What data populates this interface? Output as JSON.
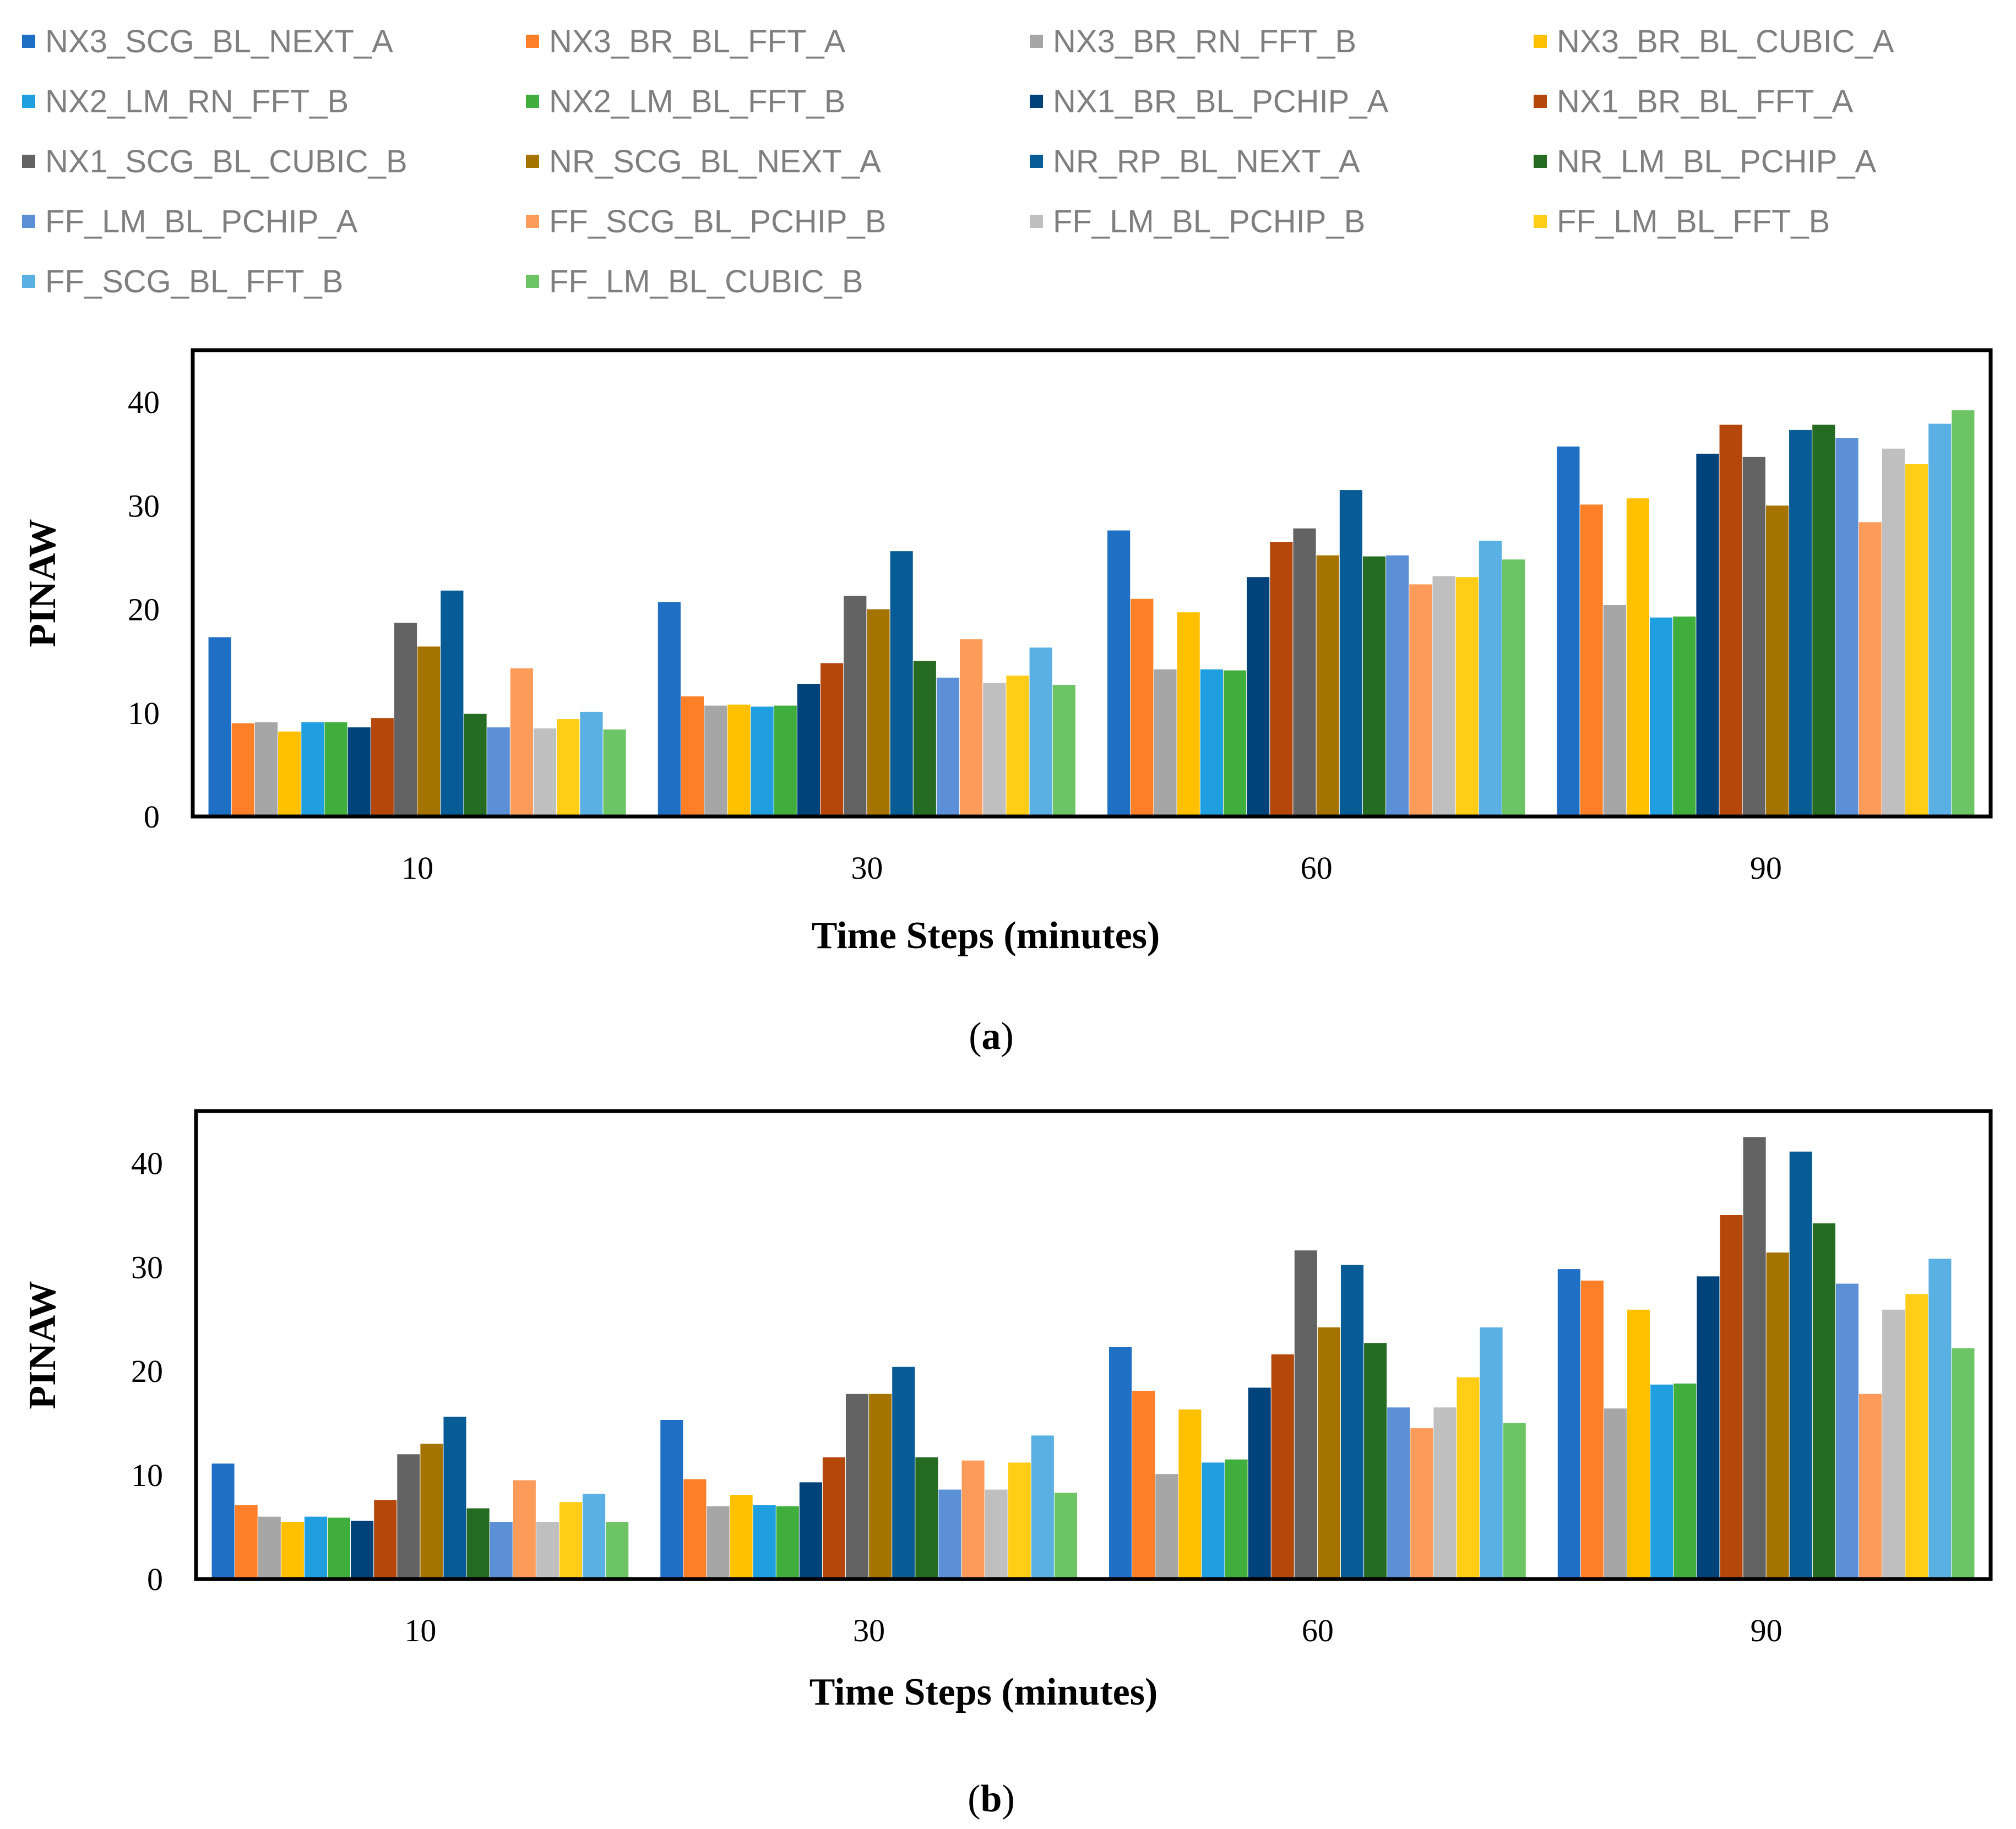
{
  "chart_data": [
    {
      "type": "bar",
      "panel": "a",
      "caption_open": "(",
      "caption": "a",
      "caption_close": ")",
      "xlabel": "Time Steps (minutes)",
      "ylabel": "PINAW",
      "ylim": [
        0,
        45
      ],
      "yticks": [
        "0",
        "10",
        "20",
        "30",
        "40"
      ],
      "categories": [
        "10",
        "30",
        "60",
        "90"
      ],
      "series": [
        {
          "name": "NX3_SCG_BL_NEXT_A",
          "color": "#1f6fc5",
          "values": [
            17.3,
            20.7,
            27.6,
            35.7
          ]
        },
        {
          "name": "NX3_BR_BL_FFT_A",
          "color": "#fd7f28",
          "values": [
            9.0,
            11.6,
            21.0,
            30.1
          ]
        },
        {
          "name": "NX3_BR_RN_FFT_B",
          "color": "#a6a6a6",
          "values": [
            9.1,
            10.7,
            14.2,
            20.4
          ]
        },
        {
          "name": "NX3_BR_BL_CUBIC_A",
          "color": "#ffc000",
          "values": [
            8.2,
            10.8,
            19.7,
            30.7
          ]
        },
        {
          "name": "NX2_LM_RN_FFT_B",
          "color": "#1f9ee0",
          "values": [
            9.1,
            10.6,
            14.2,
            19.2
          ]
        },
        {
          "name": "NX2_LM_BL_FFT_B",
          "color": "#3fae3c",
          "values": [
            9.1,
            10.7,
            14.1,
            19.3
          ]
        },
        {
          "name": "NX1_BR_BL_PCHIP_A",
          "color": "#00427a",
          "values": [
            8.6,
            12.8,
            23.1,
            35.0
          ]
        },
        {
          "name": "NX1_BR_BL_FFT_A",
          "color": "#b5470b",
          "values": [
            9.5,
            14.8,
            26.5,
            37.8
          ]
        },
        {
          "name": "NX1_SCG_BL_CUBIC_B",
          "color": "#636363",
          "values": [
            18.7,
            21.3,
            27.8,
            34.7
          ]
        },
        {
          "name": "NR_SCG_BL_NEXT_A",
          "color": "#a57300",
          "values": [
            16.4,
            20.0,
            25.2,
            30.0
          ]
        },
        {
          "name": "NR_RP_BL_NEXT_A",
          "color": "#075c95",
          "values": [
            21.8,
            25.6,
            31.5,
            37.3
          ]
        },
        {
          "name": "NR_LM_BL_PCHIP_A",
          "color": "#266b22",
          "values": [
            9.9,
            15.0,
            25.1,
            37.8
          ]
        },
        {
          "name": "FF_LM_BL_PCHIP_A",
          "color": "#5b8fd6",
          "values": [
            8.6,
            13.4,
            25.2,
            36.5
          ]
        },
        {
          "name": "FF_SCG_BL_PCHIP_B",
          "color": "#fd9b5a",
          "values": [
            14.3,
            17.1,
            22.4,
            28.4
          ]
        },
        {
          "name": "FF_LM_BL_PCHIP_B",
          "color": "#bfbfbf",
          "values": [
            8.5,
            12.9,
            23.2,
            35.5
          ]
        },
        {
          "name": "FF_LM_BL_FFT_B",
          "color": "#ffcd16",
          "values": [
            9.4,
            13.6,
            23.1,
            34.0
          ]
        },
        {
          "name": "FF_SCG_BL_FFT_B",
          "color": "#5ab0e2",
          "values": [
            10.1,
            16.3,
            26.6,
            37.9
          ]
        },
        {
          "name": "FF_LM_BL_CUBIC_B",
          "color": "#6cc465",
          "values": [
            8.4,
            12.7,
            24.8,
            39.2
          ]
        }
      ]
    },
    {
      "type": "bar",
      "panel": "b",
      "caption_open": "(",
      "caption": "b",
      "caption_close": ")",
      "xlabel": "Time Steps (minutes)",
      "ylabel": "PINAW",
      "ylim": [
        0,
        45
      ],
      "yticks": [
        "0",
        "10",
        "20",
        "30",
        "40"
      ],
      "categories": [
        "10",
        "30",
        "60",
        "90"
      ],
      "series": [
        {
          "name": "NX3_SCG_BL_NEXT_A",
          "color": "#1f6fc5",
          "values": [
            11.1,
            15.3,
            22.3,
            29.8
          ]
        },
        {
          "name": "NX3_BR_BL_FFT_A",
          "color": "#fd7f28",
          "values": [
            7.1,
            9.6,
            18.1,
            28.7
          ]
        },
        {
          "name": "NX3_BR_RN_FFT_B",
          "color": "#a6a6a6",
          "values": [
            6.0,
            7.0,
            10.1,
            16.4
          ]
        },
        {
          "name": "NX3_BR_BL_CUBIC_A",
          "color": "#ffc000",
          "values": [
            5.5,
            8.1,
            16.3,
            25.9
          ]
        },
        {
          "name": "NX2_LM_RN_FFT_B",
          "color": "#1f9ee0",
          "values": [
            6.0,
            7.1,
            11.2,
            18.7
          ]
        },
        {
          "name": "NX2_LM_BL_FFT_B",
          "color": "#3fae3c",
          "values": [
            5.9,
            7.0,
            11.5,
            18.8
          ]
        },
        {
          "name": "NX1_BR_BL_PCHIP_A",
          "color": "#00427a",
          "values": [
            5.6,
            9.3,
            18.4,
            29.1
          ]
        },
        {
          "name": "NX1_BR_BL_FFT_A",
          "color": "#b5470b",
          "values": [
            7.6,
            11.7,
            21.6,
            35.0
          ]
        },
        {
          "name": "NX1_SCG_BL_CUBIC_B",
          "color": "#636363",
          "values": [
            12.0,
            17.8,
            31.6,
            42.5
          ]
        },
        {
          "name": "NR_SCG_BL_NEXT_A",
          "color": "#a57300",
          "values": [
            13.0,
            17.8,
            24.2,
            31.4
          ]
        },
        {
          "name": "NR_RP_BL_NEXT_A",
          "color": "#075c95",
          "values": [
            15.6,
            20.4,
            30.2,
            41.1
          ]
        },
        {
          "name": "NR_LM_BL_PCHIP_A",
          "color": "#266b22",
          "values": [
            6.8,
            11.7,
            22.7,
            34.2
          ]
        },
        {
          "name": "FF_LM_BL_PCHIP_A",
          "color": "#5b8fd6",
          "values": [
            5.5,
            8.6,
            16.5,
            28.4
          ]
        },
        {
          "name": "FF_SCG_BL_PCHIP_B",
          "color": "#fd9b5a",
          "values": [
            9.5,
            11.4,
            14.5,
            17.8
          ]
        },
        {
          "name": "FF_LM_BL_PCHIP_B",
          "color": "#bfbfbf",
          "values": [
            5.5,
            8.6,
            16.5,
            25.9
          ]
        },
        {
          "name": "FF_LM_BL_FFT_B",
          "color": "#ffcd16",
          "values": [
            7.4,
            11.2,
            19.4,
            27.4
          ]
        },
        {
          "name": "FF_SCG_BL_FFT_B",
          "color": "#5ab0e2",
          "values": [
            8.2,
            13.8,
            24.2,
            30.8
          ]
        },
        {
          "name": "FF_LM_BL_CUBIC_B",
          "color": "#6cc465",
          "values": [
            5.5,
            8.3,
            15.0,
            22.2
          ]
        }
      ]
    }
  ]
}
